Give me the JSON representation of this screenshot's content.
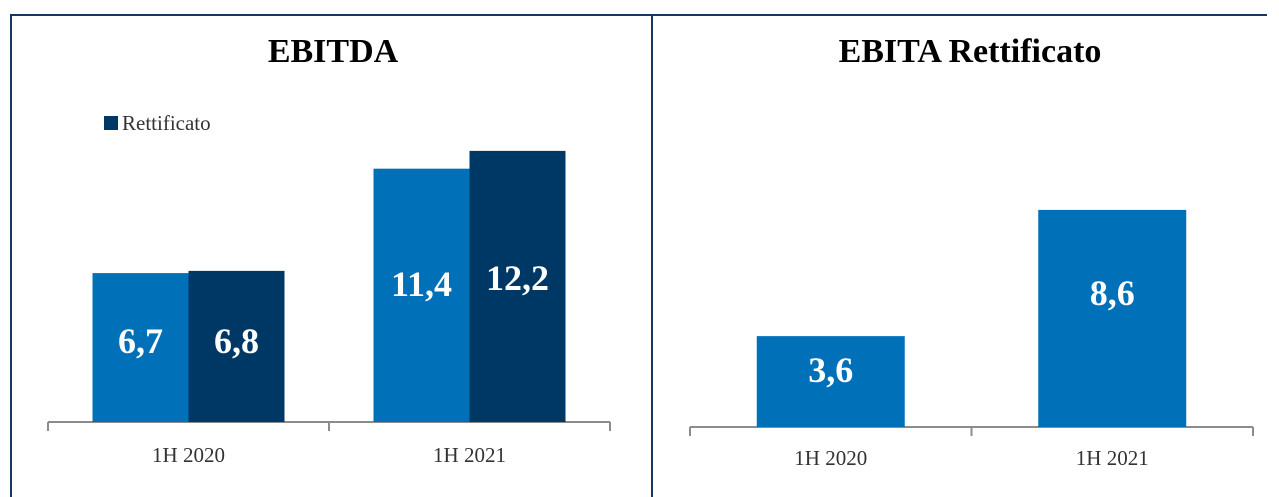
{
  "chart_data": [
    {
      "type": "bar",
      "title": "EBITDA",
      "categories": [
        "1H 2020",
        "1H 2021"
      ],
      "series": [
        {
          "name": "",
          "color": "#0070b8",
          "values": [
            6.7,
            11.4
          ],
          "labels": [
            "6,7",
            "11,4"
          ]
        },
        {
          "name": "Rettificato",
          "color": "#003865",
          "values": [
            6.8,
            12.2
          ],
          "labels": [
            "6,8",
            "12,2"
          ]
        }
      ],
      "ylim": [
        0,
        13.5
      ],
      "legend": "top-left",
      "grid": false
    },
    {
      "type": "bar",
      "title": "EBITA Rettificato",
      "categories": [
        "1H 2020",
        "1H 2021"
      ],
      "series": [
        {
          "name": "",
          "color": "#0070b8",
          "values": [
            3.6,
            8.6
          ],
          "labels": [
            "3,6",
            "8,6"
          ]
        }
      ],
      "ylim": [
        0,
        10.3
      ],
      "legend": "none",
      "grid": false
    }
  ]
}
